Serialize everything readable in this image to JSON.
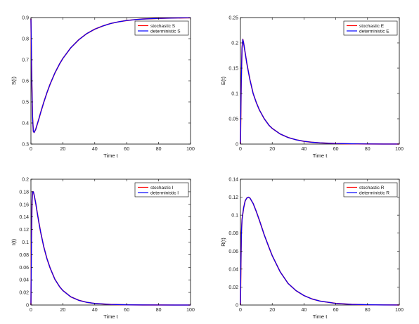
{
  "chart_data": [
    {
      "type": "line",
      "xlabel": "Time t",
      "ylabel": "S(t)",
      "xlim": [
        0,
        100
      ],
      "ylim": [
        0.3,
        0.9
      ],
      "xticks": [
        0,
        20,
        40,
        60,
        80,
        100
      ],
      "yticks": [
        0.3,
        0.4,
        0.5,
        0.6,
        0.7,
        0.8,
        0.9
      ],
      "tick_decimals": 1,
      "grid": false,
      "legend": "top-right",
      "series": [
        {
          "name": "stochastic S",
          "color": "#ff0000",
          "x": [
            0,
            0.5,
            1,
            1.5,
            2,
            3,
            4,
            5,
            6,
            8,
            10,
            12,
            15,
            18,
            20,
            25,
            30,
            35,
            40,
            45,
            50,
            55,
            60,
            65,
            70,
            80,
            90,
            100
          ],
          "y": [
            0.895,
            0.62,
            0.43,
            0.36,
            0.355,
            0.37,
            0.395,
            0.42,
            0.447,
            0.497,
            0.543,
            0.584,
            0.637,
            0.681,
            0.706,
            0.757,
            0.795,
            0.824,
            0.845,
            0.86,
            0.872,
            0.88,
            0.886,
            0.89,
            0.893,
            0.896,
            0.898,
            0.899
          ]
        },
        {
          "name": "deterministic S",
          "color": "#0000ff",
          "x": [
            0,
            0.5,
            1,
            1.5,
            2,
            3,
            4,
            5,
            6,
            8,
            10,
            12,
            15,
            18,
            20,
            25,
            30,
            35,
            40,
            45,
            50,
            55,
            60,
            65,
            70,
            80,
            90,
            100
          ],
          "y": [
            0.895,
            0.62,
            0.43,
            0.36,
            0.355,
            0.37,
            0.395,
            0.42,
            0.447,
            0.497,
            0.543,
            0.584,
            0.637,
            0.681,
            0.706,
            0.757,
            0.795,
            0.824,
            0.845,
            0.86,
            0.872,
            0.88,
            0.886,
            0.89,
            0.893,
            0.896,
            0.898,
            0.899
          ]
        }
      ]
    },
    {
      "type": "line",
      "xlabel": "Time t",
      "ylabel": "E(t)",
      "xlim": [
        0,
        100
      ],
      "ylim": [
        0,
        0.25
      ],
      "xticks": [
        0,
        20,
        40,
        60,
        80,
        100
      ],
      "yticks": [
        0,
        0.05,
        0.1,
        0.15,
        0.2,
        0.25
      ],
      "tick_decimals": 2,
      "grid": false,
      "legend": "top-right",
      "series": [
        {
          "name": "stochastic E",
          "color": "#ff0000",
          "x": [
            0,
            0.5,
            1,
            1.5,
            2,
            3,
            4,
            5,
            6,
            8,
            10,
            12,
            15,
            18,
            20,
            25,
            30,
            35,
            40,
            45,
            50,
            60,
            70,
            80,
            90,
            100
          ],
          "y": [
            0,
            0.12,
            0.19,
            0.207,
            0.2,
            0.18,
            0.16,
            0.143,
            0.127,
            0.1,
            0.082,
            0.067,
            0.05,
            0.037,
            0.031,
            0.02,
            0.013,
            0.0085,
            0.0055,
            0.0036,
            0.0024,
            0.0011,
            0.0005,
            0.00025,
            0.0001,
            5e-05
          ]
        },
        {
          "name": "deterministic E",
          "color": "#0000ff",
          "x": [
            0,
            0.5,
            1,
            1.5,
            2,
            3,
            4,
            5,
            6,
            8,
            10,
            12,
            15,
            18,
            20,
            25,
            30,
            35,
            40,
            45,
            50,
            60,
            70,
            80,
            90,
            100
          ],
          "y": [
            0,
            0.12,
            0.19,
            0.207,
            0.2,
            0.18,
            0.16,
            0.143,
            0.127,
            0.1,
            0.082,
            0.067,
            0.05,
            0.037,
            0.031,
            0.02,
            0.013,
            0.0085,
            0.0055,
            0.0036,
            0.0024,
            0.0011,
            0.0005,
            0.00025,
            0.0001,
            5e-05
          ]
        }
      ]
    },
    {
      "type": "line",
      "xlabel": "Time t",
      "ylabel": "I(t)",
      "xlim": [
        0,
        100
      ],
      "ylim": [
        0,
        0.2
      ],
      "xticks": [
        0,
        20,
        40,
        60,
        80,
        100
      ],
      "yticks": [
        0,
        0.02,
        0.04,
        0.06,
        0.08,
        0.1,
        0.12,
        0.14,
        0.16,
        0.18,
        0.2
      ],
      "tick_decimals": 2,
      "grid": false,
      "legend": "top-right",
      "series": [
        {
          "name": "stochastic I",
          "color": "#ff0000",
          "x": [
            0,
            0.3,
            0.7,
            1,
            1.5,
            2,
            3,
            4,
            5,
            6,
            8,
            10,
            12,
            15,
            18,
            20,
            25,
            30,
            35,
            40,
            50,
            60,
            70,
            80,
            90,
            100
          ],
          "y": [
            0,
            0.1,
            0.165,
            0.18,
            0.18,
            0.175,
            0.162,
            0.146,
            0.131,
            0.117,
            0.093,
            0.074,
            0.059,
            0.041,
            0.029,
            0.023,
            0.013,
            0.0075,
            0.0043,
            0.0025,
            0.0009,
            0.0003,
            0.0001,
            4e-05,
            1e-05,
            0
          ]
        },
        {
          "name": "deterministic I",
          "color": "#0000ff",
          "x": [
            0,
            0.3,
            0.7,
            1,
            1.5,
            2,
            3,
            4,
            5,
            6,
            8,
            10,
            12,
            15,
            18,
            20,
            25,
            30,
            35,
            40,
            50,
            60,
            70,
            80,
            90,
            100
          ],
          "y": [
            0,
            0.1,
            0.165,
            0.18,
            0.18,
            0.175,
            0.162,
            0.146,
            0.131,
            0.117,
            0.093,
            0.074,
            0.059,
            0.041,
            0.029,
            0.023,
            0.013,
            0.0075,
            0.0043,
            0.0025,
            0.0009,
            0.0003,
            0.0001,
            4e-05,
            1e-05,
            0
          ]
        }
      ]
    },
    {
      "type": "line",
      "xlabel": "Time t",
      "ylabel": "R(t)",
      "xlim": [
        0,
        100
      ],
      "ylim": [
        0,
        0.14
      ],
      "xticks": [
        0,
        20,
        40,
        60,
        80,
        100
      ],
      "yticks": [
        0,
        0.02,
        0.04,
        0.06,
        0.08,
        0.1,
        0.12,
        0.14
      ],
      "tick_decimals": 2,
      "grid": false,
      "legend": "top-right",
      "series": [
        {
          "name": "stochastic R",
          "color": "#ff0000",
          "x": [
            0,
            0.3,
            0.6,
            1,
            2,
            3,
            4,
            5,
            6,
            8,
            10,
            12,
            15,
            18,
            20,
            25,
            30,
            35,
            40,
            45,
            50,
            60,
            70,
            80,
            90,
            100
          ],
          "y": [
            0,
            0.045,
            0.08,
            0.095,
            0.108,
            0.116,
            0.119,
            0.12,
            0.119,
            0.113,
            0.104,
            0.094,
            0.078,
            0.064,
            0.055,
            0.037,
            0.024,
            0.016,
            0.0105,
            0.0068,
            0.0044,
            0.0018,
            0.0007,
            0.0003,
            0.0001,
            5e-05
          ]
        },
        {
          "name": "deterministic R",
          "color": "#0000ff",
          "x": [
            0,
            0.3,
            0.6,
            1,
            2,
            3,
            4,
            5,
            6,
            8,
            10,
            12,
            15,
            18,
            20,
            25,
            30,
            35,
            40,
            45,
            50,
            60,
            70,
            80,
            90,
            100
          ],
          "y": [
            0,
            0.045,
            0.08,
            0.095,
            0.108,
            0.116,
            0.119,
            0.12,
            0.119,
            0.113,
            0.104,
            0.094,
            0.078,
            0.064,
            0.055,
            0.037,
            0.024,
            0.016,
            0.0105,
            0.0068,
            0.0044,
            0.0018,
            0.0007,
            0.0003,
            0.0001,
            5e-05
          ]
        }
      ]
    }
  ]
}
